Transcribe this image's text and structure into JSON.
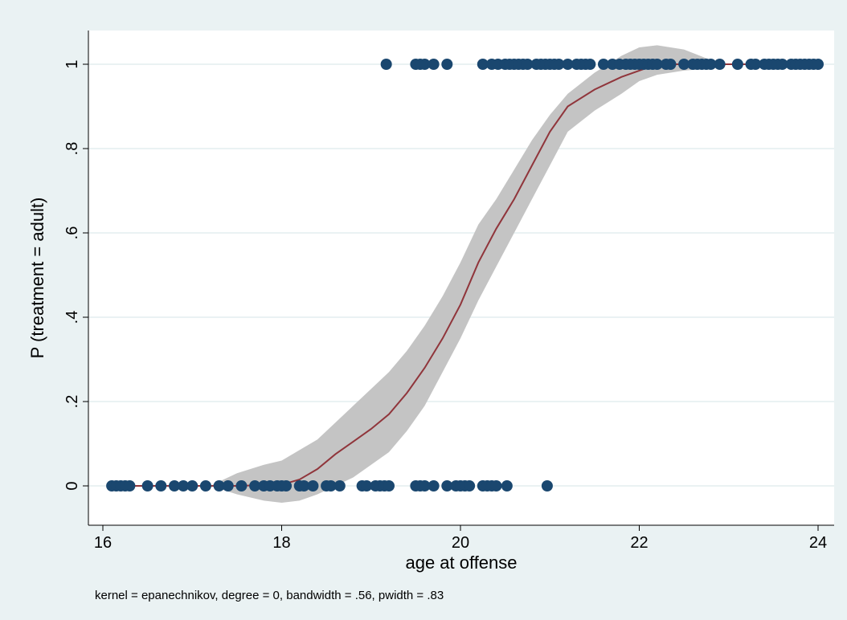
{
  "chart_data": {
    "type": "scatter",
    "title": "",
    "xlabel": "age at offense",
    "ylabel": "P (treatment = adult)",
    "note": "kernel = epanechnikov, degree = 0, bandwidth = .56, pwidth = .83",
    "xlim": [
      16,
      24
    ],
    "ylim": [
      -0.05,
      1.08
    ],
    "xticks": [
      16,
      18,
      20,
      22,
      24
    ],
    "yticks": [
      {
        "value": 0,
        "label": "0"
      },
      {
        "value": 0.2,
        "label": ".2"
      },
      {
        "value": 0.4,
        "label": ".4"
      },
      {
        "value": 0.6,
        "label": ".6"
      },
      {
        "value": 0.8,
        "label": ".8"
      },
      {
        "value": 1,
        "label": "1"
      }
    ],
    "grid": true,
    "colors": {
      "points": "#1a476f",
      "fit_line": "#90353b",
      "ci_band": "#c4c4c4",
      "grid": "#eaf2f3",
      "plot_bg": "#ffffff",
      "outer_bg": "#eaf2f3"
    },
    "points_y0_x": [
      16.1,
      16.15,
      16.2,
      16.25,
      16.3,
      16.5,
      16.65,
      16.8,
      16.9,
      17.0,
      17.15,
      17.3,
      17.4,
      17.55,
      17.7,
      17.8,
      17.87,
      17.95,
      18.0,
      18.05,
      18.2,
      18.25,
      18.35,
      18.5,
      18.55,
      18.65,
      18.9,
      18.95,
      19.05,
      19.1,
      19.15,
      19.2,
      19.5,
      19.55,
      19.6,
      19.7,
      19.85,
      19.95,
      20.0,
      20.05,
      20.1,
      20.25,
      20.3,
      20.35,
      20.4,
      20.52,
      20.97
    ],
    "points_y1_x": [
      19.17,
      19.5,
      19.55,
      19.6,
      19.7,
      19.85,
      20.25,
      20.35,
      20.42,
      20.5,
      20.55,
      20.6,
      20.65,
      20.7,
      20.75,
      20.85,
      20.9,
      20.95,
      21.0,
      21.05,
      21.1,
      21.2,
      21.3,
      21.35,
      21.4,
      21.45,
      21.6,
      21.7,
      21.78,
      21.85,
      21.9,
      21.95,
      22.0,
      22.05,
      22.1,
      22.15,
      22.2,
      22.3,
      22.35,
      22.5,
      22.6,
      22.65,
      22.7,
      22.75,
      22.8,
      22.9,
      23.1,
      23.25,
      23.3,
      23.4,
      23.45,
      23.5,
      23.55,
      23.6,
      23.7,
      23.75,
      23.8,
      23.85,
      23.9,
      23.95,
      24.0
    ],
    "fit_line": {
      "x": [
        16.1,
        16.5,
        17.0,
        17.5,
        18.0,
        18.2,
        18.4,
        18.6,
        18.8,
        19.0,
        19.2,
        19.4,
        19.6,
        19.8,
        20.0,
        20.2,
        20.4,
        20.6,
        20.8,
        21.0,
        21.2,
        21.5,
        21.8,
        22.0,
        22.2,
        22.5,
        23.0,
        24.0
      ],
      "y": [
        0,
        0,
        0,
        0,
        0.003,
        0.015,
        0.04,
        0.075,
        0.105,
        0.135,
        0.17,
        0.22,
        0.28,
        0.35,
        0.43,
        0.53,
        0.61,
        0.68,
        0.76,
        0.84,
        0.9,
        0.94,
        0.97,
        0.985,
        1.0,
        1.0,
        1.0,
        1.0
      ]
    },
    "ci_band": {
      "x": [
        17.2,
        17.5,
        17.8,
        18.0,
        18.2,
        18.4,
        18.6,
        18.8,
        19.0,
        19.2,
        19.4,
        19.6,
        19.8,
        20.0,
        20.2,
        20.4,
        20.6,
        20.8,
        21.0,
        21.2,
        21.5,
        21.8,
        22.0,
        22.2,
        22.5,
        22.8
      ],
      "upper": [
        0.0,
        0.03,
        0.05,
        0.06,
        0.085,
        0.11,
        0.15,
        0.19,
        0.23,
        0.27,
        0.32,
        0.38,
        0.45,
        0.53,
        0.62,
        0.68,
        0.75,
        0.82,
        0.88,
        0.93,
        0.98,
        1.02,
        1.04,
        1.045,
        1.035,
        1.01
      ],
      "lower": [
        0.0,
        -0.02,
        -0.035,
        -0.04,
        -0.035,
        -0.02,
        0.0,
        0.02,
        0.05,
        0.08,
        0.13,
        0.19,
        0.27,
        0.35,
        0.44,
        0.52,
        0.6,
        0.68,
        0.76,
        0.84,
        0.89,
        0.93,
        0.96,
        0.975,
        0.985,
        0.99
      ]
    }
  }
}
